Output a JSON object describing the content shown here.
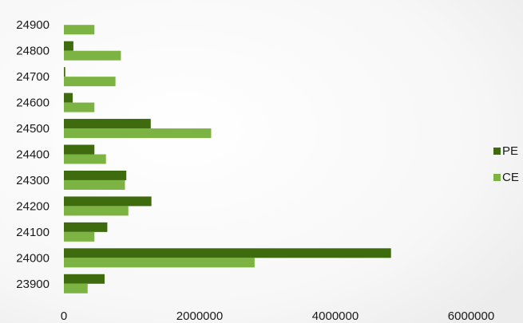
{
  "chart_data": {
    "type": "bar",
    "orientation": "horizontal",
    "title": "",
    "xlabel": "",
    "ylabel": "",
    "categories": [
      "23900",
      "24000",
      "24100",
      "24200",
      "24300",
      "24400",
      "24500",
      "24600",
      "24700",
      "24800",
      "24900"
    ],
    "series": [
      {
        "name": "PE",
        "color": "#3f6b0f",
        "values": [
          600000,
          4820000,
          640000,
          1290000,
          920000,
          450000,
          1280000,
          130000,
          20000,
          140000,
          0
        ]
      },
      {
        "name": "CE",
        "color": "#7cb342",
        "values": [
          350000,
          2810000,
          450000,
          950000,
          900000,
          620000,
          2170000,
          450000,
          760000,
          840000,
          450000
        ]
      }
    ],
    "xlim": [
      0,
      6000000
    ],
    "xticks": [
      "0",
      "2000000",
      "4000000",
      "6000000"
    ],
    "grid": false,
    "legend_position": "right"
  }
}
